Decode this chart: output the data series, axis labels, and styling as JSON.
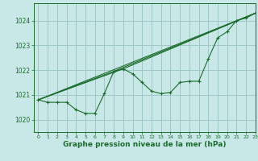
{
  "background_color": "#c8e8e8",
  "grid_color": "#a0c8c8",
  "line_color": "#1a6b2a",
  "xlabel": "Graphe pression niveau de la mer (hPa)",
  "xlim": [
    -0.5,
    23
  ],
  "ylim": [
    1019.5,
    1024.7
  ],
  "yticks": [
    1020,
    1021,
    1022,
    1023,
    1024
  ],
  "xticks": [
    0,
    1,
    2,
    3,
    4,
    5,
    6,
    7,
    8,
    9,
    10,
    11,
    12,
    13,
    14,
    15,
    16,
    17,
    18,
    19,
    20,
    21,
    22,
    23
  ],
  "series1": {
    "x": [
      0,
      1,
      2,
      3,
      4,
      5,
      6,
      7,
      8,
      9,
      10,
      11,
      12,
      13,
      14,
      15,
      16,
      17,
      18,
      19,
      20,
      21,
      22,
      23
    ],
    "y": [
      1020.8,
      1020.7,
      1020.7,
      1020.7,
      1020.4,
      1020.25,
      1020.25,
      1021.05,
      1021.95,
      1022.05,
      1021.85,
      1021.5,
      1021.15,
      1021.05,
      1021.1,
      1021.5,
      1021.55,
      1021.55,
      1022.45,
      1023.3,
      1023.55,
      1024.0,
      1024.1,
      1024.3
    ]
  },
  "series2_x": [
    0,
    23
  ],
  "series2_y": [
    1020.8,
    1024.3
  ],
  "series3_x": [
    0,
    9,
    23
  ],
  "series3_y": [
    1020.8,
    1022.05,
    1024.3
  ],
  "series4_x": [
    0,
    8,
    23
  ],
  "series4_y": [
    1020.8,
    1021.95,
    1024.3
  ]
}
